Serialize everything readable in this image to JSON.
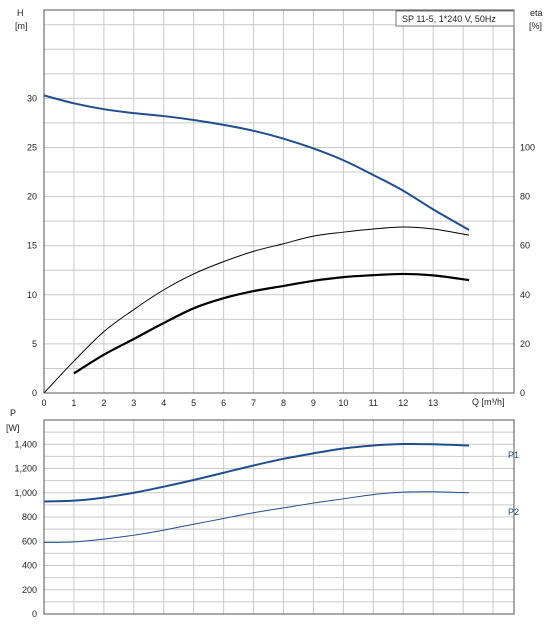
{
  "chart_data": [
    {
      "type": "line",
      "title_box": "SP 11-5, 1*240 V, 50Hz",
      "xlabel": "Q [m³/h]",
      "ylabel_left": [
        "H",
        "[m]"
      ],
      "ylabel_right": [
        "eta",
        "[%]"
      ],
      "xlim": [
        0,
        15.7
      ],
      "ylim_left": [
        0,
        39
      ],
      "ylim_right": [
        0,
        156
      ],
      "x_ticks": [
        "0",
        "1",
        "2",
        "3",
        "4",
        "5",
        "6",
        "7",
        "8",
        "9",
        "10",
        "11",
        "12",
        "13"
      ],
      "y_left_ticks": [
        "0",
        "5",
        "10",
        "15",
        "20",
        "25",
        "30"
      ],
      "y_right_ticks": [
        "0",
        "20",
        "40",
        "60",
        "80",
        "100"
      ],
      "grid": true,
      "series": [
        {
          "axis": "left",
          "color": "#1f4e8c",
          "x": [
            0,
            1,
            2,
            3,
            4,
            5,
            6,
            7,
            8,
            9,
            10,
            11,
            12,
            13,
            14.2
          ],
          "y": [
            30.3,
            29.5,
            28.9,
            28.5,
            28.2,
            27.8,
            27.3,
            26.7,
            25.9,
            24.9,
            23.7,
            22.2,
            20.6,
            18.7,
            16.6
          ]
        },
        {
          "axis": "right",
          "color": "#000000",
          "x": [
            0,
            1,
            2,
            3,
            4,
            5,
            6,
            7,
            8,
            9,
            10,
            11,
            12,
            13,
            14.2
          ],
          "y": [
            0,
            13,
            25,
            34,
            42,
            48.5,
            53.5,
            57.7,
            60.8,
            63.9,
            65.5,
            66.8,
            67.6,
            66.8,
            64.3
          ]
        },
        {
          "axis": "right",
          "color": "#000000",
          "x": [
            1,
            2,
            3,
            4,
            5,
            6,
            7,
            8,
            9,
            10,
            11,
            12,
            13,
            14.2
          ],
          "y": [
            8,
            15.6,
            22,
            28.5,
            34.5,
            38.6,
            41.5,
            43.6,
            45.7,
            47.2,
            48,
            48.5,
            47.9,
            46
          ]
        }
      ]
    },
    {
      "type": "line",
      "ylabel": [
        "P",
        "[W]"
      ],
      "xlim": [
        0,
        15.7
      ],
      "ylim": [
        0,
        1600
      ],
      "y_ticks": [
        "0",
        "200",
        "400",
        "600",
        "800",
        "1,000",
        "1,200",
        "1,400"
      ],
      "grid": true,
      "series": [
        {
          "name": "P1",
          "color": "#1f4e8c",
          "x": [
            0,
            1,
            2,
            3,
            4,
            5,
            6,
            7,
            8,
            9,
            10,
            11,
            12,
            13,
            14.2
          ],
          "y": [
            928,
            935,
            960,
            1000,
            1050,
            1105,
            1165,
            1225,
            1280,
            1325,
            1365,
            1390,
            1402,
            1400,
            1390
          ]
        },
        {
          "name": "P2",
          "color": "#1f4e8c",
          "x": [
            0,
            1,
            2,
            3,
            4,
            5,
            6,
            7,
            8,
            9,
            10,
            11,
            12,
            13,
            14.2
          ],
          "y": [
            590,
            595,
            618,
            650,
            692,
            740,
            788,
            835,
            875,
            915,
            950,
            985,
            1005,
            1008,
            1000
          ]
        }
      ]
    }
  ]
}
